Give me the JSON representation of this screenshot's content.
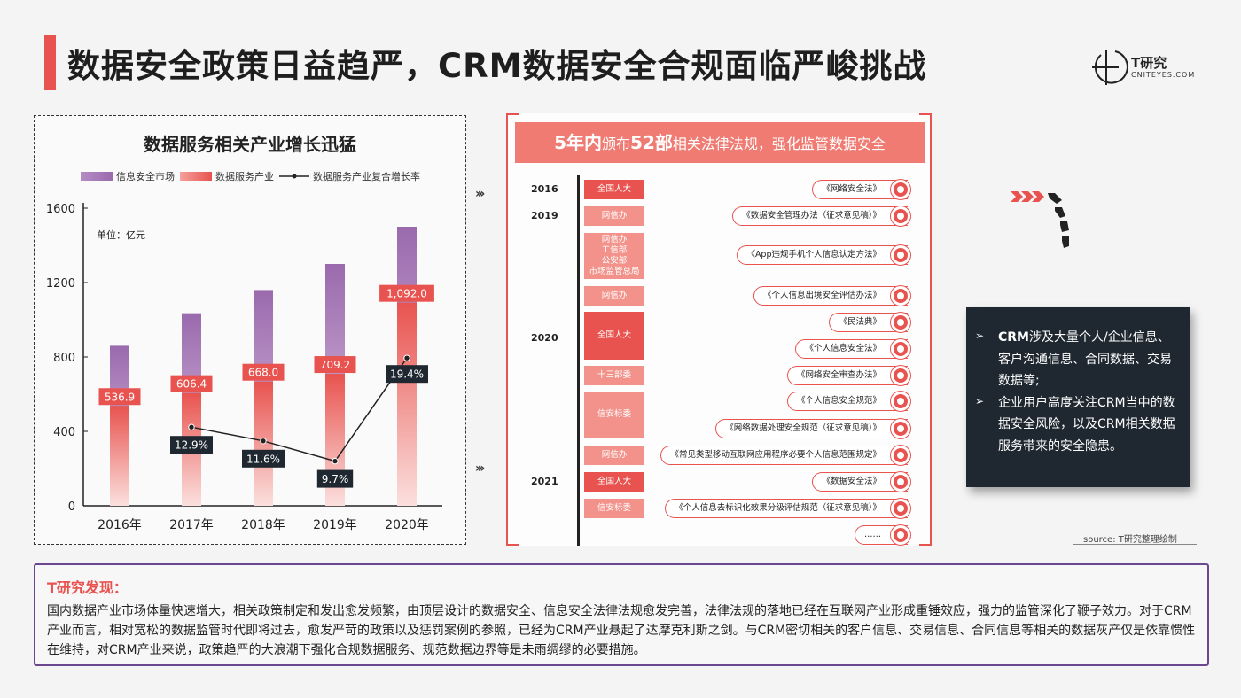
{
  "page": {
    "title": "数据安全政策日益趋严，CRM数据安全合规面临严峻挑战"
  },
  "logo": {
    "name": "T研究",
    "sub": "CNITEYES.COM"
  },
  "chart_data": {
    "type": "bar",
    "title": "数据服务相关产业增长迅猛",
    "unit": "单位：亿元",
    "categories": [
      "2016年",
      "2017年",
      "2018年",
      "2019年",
      "2020年"
    ],
    "ylim": [
      0,
      1600
    ],
    "yticks": [
      "0",
      "400",
      "800",
      "1200",
      "1600"
    ],
    "series": [
      {
        "name": "信息安全市场",
        "values": [
          860,
          1035,
          1160,
          1300,
          1500
        ],
        "color": "#a070b0"
      },
      {
        "name": "数据服务产业",
        "values": [
          536.9,
          606.4,
          668.0,
          709.2,
          1092.0
        ],
        "labels": [
          "536.9",
          "606.4",
          "668.0",
          "709.2",
          "1,092.0"
        ],
        "color": "#e8534f"
      },
      {
        "name": "数据服务产业复合增长率",
        "x": [
          "2017年",
          "2018年",
          "2019年",
          "2020年"
        ],
        "values": [
          12.9,
          11.6,
          9.7,
          19.4
        ],
        "labels": [
          "12.9%",
          "11.6%",
          "9.7%",
          "19.4%"
        ],
        "color": "#222222"
      }
    ]
  },
  "laws": {
    "header_bold": "5年内",
    "header_mid": "颁布",
    "header_count": "52部",
    "header_rest": "相关法律法规，强化监管数据安全",
    "years": [
      "2016",
      "2019",
      "2020",
      "2021"
    ],
    "agencies": [
      "全国人大",
      "网信办",
      "网信办\n工信部\n公安部\n市场监管总局",
      "网信办",
      "全国人大",
      "十三部委",
      "信安标委",
      "网信办",
      "全国人大",
      "信安标委"
    ],
    "items": [
      "《网络安全法》",
      "《数据安全管理办法（征求意见稿）》",
      "《App违规手机个人信息认定方法》",
      "《个人信息出境安全评估办法》",
      "《民法典》",
      "《个人信息安全法》",
      "《网络安全审查办法》",
      "《个人信息安全规范》",
      "《网络数据处理安全规范（征求意见稿）》",
      "《常见类型移动互联网应用程序必要个人信息范围规定》",
      "《数据安全法》",
      "《个人信息去标识化效果分级评估规范（征求意见稿）》",
      "……"
    ]
  },
  "info": {
    "item1_bold": "CRM",
    "item1_rest": "涉及大量个人/企业信息、客户沟通信息、合同数据、交易数据等;",
    "item2": "企业用户高度关注CRM当中的数据安全风险，以及CRM相关数据服务带来的安全隐患。"
  },
  "source": "source:    T研究整理绘制",
  "finding": {
    "title": "T研究发现：",
    "body": "国内数据产业市场体量快速增大，相关政策制定和发出愈发频繁，由顶层设计的数据安全、信息安全法律法规愈发完善，法律法规的落地已经在互联网产业形成重锤效应，强力的监管深化了鞭子效力。对于CRM产业而言，相对宽松的数据监管时代即将过去，愈发严苛的政策以及惩罚案例的参照，已经为CRM产业悬起了达摩克利斯之剑。与CRM密切相关的客户信息、交易信息、合同信息等相关的数据灰产仅是依靠惯性在维持，对CRM产业来说，政策趋严的大浪潮下强化合规数据服务、规范数据边界等是未雨绸缪的必要措施。"
  }
}
